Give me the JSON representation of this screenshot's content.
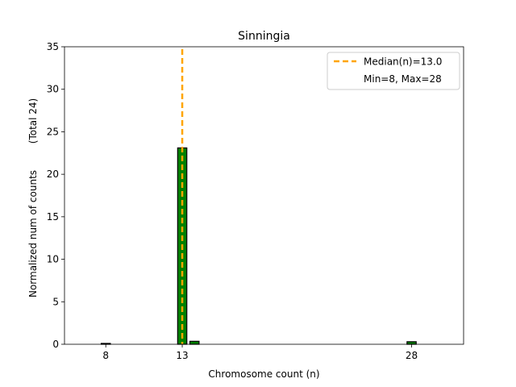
{
  "chart_data": {
    "type": "bar",
    "title": "Sinningia",
    "xlabel": "Chromosome count (n)",
    "ylabel": "Normalized num of counts",
    "ylabel_secondary": "(Total 24)",
    "xlim": [
      5.3,
      31.4
    ],
    "ylim": [
      0,
      35
    ],
    "xticks": [
      8,
      13,
      28
    ],
    "yticks": [
      0,
      5,
      10,
      15,
      20,
      25,
      30,
      35
    ],
    "bar_width": 0.6,
    "bars": [
      {
        "x": 8,
        "value": 0.1
      },
      {
        "x": 13,
        "value": 23.1
      },
      {
        "x": 13.8,
        "value": 0.35
      },
      {
        "x": 28,
        "value": 0.3
      }
    ],
    "median_line": {
      "x": 13.0,
      "label": "Median(n)=13.0"
    },
    "legend": {
      "position": "top-right",
      "entries": [
        "Median(n)=13.0",
        "Min=8, Max=28"
      ]
    },
    "grid": false,
    "colors": {
      "bar_fill": "#008000",
      "bar_edge": "#000000",
      "median": "#FFA500"
    }
  }
}
